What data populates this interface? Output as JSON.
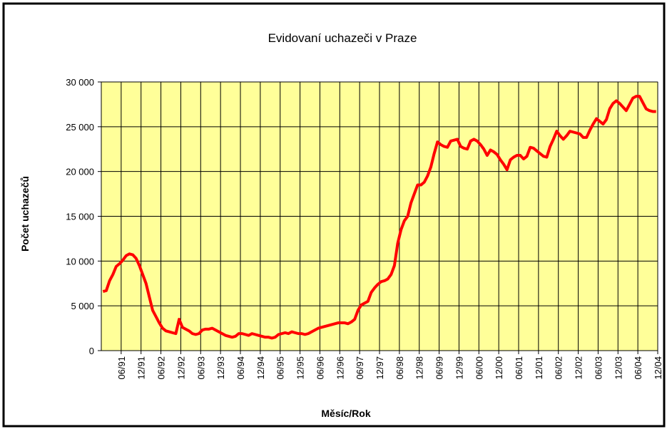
{
  "chart_data": {
    "type": "line",
    "title": "Evidovaní uchazeči v Praze",
    "y_label": "Počet uchazečů",
    "x_label": "Měsíc/Rok",
    "categories": [
      null,
      null,
      null,
      null,
      null,
      "06/91",
      null,
      null,
      null,
      null,
      null,
      "12/91",
      null,
      null,
      null,
      null,
      null,
      "06/92",
      null,
      null,
      null,
      null,
      null,
      "12/92",
      null,
      null,
      null,
      null,
      null,
      "06/93",
      null,
      null,
      null,
      null,
      null,
      "12/93",
      null,
      null,
      null,
      null,
      null,
      "06/94",
      null,
      null,
      null,
      null,
      null,
      "12/94",
      null,
      null,
      null,
      null,
      null,
      "06/95",
      null,
      null,
      null,
      null,
      null,
      "12/95",
      null,
      null,
      null,
      null,
      null,
      "06/96",
      null,
      null,
      null,
      null,
      null,
      "12/96",
      null,
      null,
      null,
      null,
      null,
      "06/97",
      null,
      null,
      null,
      null,
      null,
      "12/97",
      null,
      null,
      null,
      null,
      null,
      "06/98",
      null,
      null,
      null,
      null,
      null,
      "12/98",
      null,
      null,
      null,
      null,
      null,
      "06/99",
      null,
      null,
      null,
      null,
      null,
      "12/99",
      null,
      null,
      null,
      null,
      null,
      "06/00",
      null,
      null,
      null,
      null,
      null,
      "12/00",
      null,
      null,
      null,
      null,
      null,
      "06/01",
      null,
      null,
      null,
      null,
      null,
      "12/01",
      null,
      null,
      null,
      null,
      null,
      "06/02",
      null,
      null,
      null,
      null,
      null,
      "12/02",
      null,
      null,
      null,
      null,
      null,
      "06/03",
      null,
      null,
      null,
      null,
      null,
      "12/03",
      null,
      null,
      null,
      null,
      null,
      "06/04",
      null,
      null,
      null,
      null,
      null,
      "12/04"
    ],
    "series": [
      {
        "name": "Evidovaní uchazeči",
        "color": "#ff0000",
        "values": [
          6600,
          6700,
          7800,
          8500,
          9400,
          9700,
          10100,
          10600,
          10800,
          10700,
          10300,
          9500,
          8500,
          7500,
          6000,
          4500,
          3800,
          3100,
          2500,
          2200,
          2100,
          2000,
          1900,
          3500,
          2600,
          2400,
          2200,
          1900,
          1800,
          1900,
          2300,
          2400,
          2400,
          2500,
          2300,
          2100,
          1900,
          1700,
          1600,
          1500,
          1600,
          1900,
          1900,
          1800,
          1700,
          1900,
          1800,
          1700,
          1600,
          1500,
          1500,
          1400,
          1500,
          1800,
          1900,
          2000,
          1900,
          2100,
          2000,
          1900,
          1900,
          1800,
          1900,
          2100,
          2300,
          2500,
          2600,
          2700,
          2800,
          2900,
          3000,
          3100,
          3100,
          3100,
          3000,
          3200,
          3500,
          4500,
          5100,
          5300,
          5500,
          6500,
          7000,
          7400,
          7700,
          7800,
          8000,
          8500,
          9500,
          12000,
          13500,
          14500,
          15000,
          16500,
          17500,
          18500,
          18500,
          18800,
          19500,
          20500,
          22000,
          23300,
          23000,
          22800,
          22700,
          23400,
          23500,
          23600,
          22800,
          22600,
          22500,
          23400,
          23600,
          23400,
          23000,
          22500,
          21800,
          22400,
          22200,
          21900,
          21300,
          20800,
          20200,
          21300,
          21600,
          21800,
          21800,
          21400,
          21700,
          22700,
          22600,
          22300,
          22000,
          21700,
          21600,
          22800,
          23600,
          24500,
          24000,
          23600,
          24000,
          24500,
          24400,
          24300,
          24200,
          23800,
          23800,
          24600,
          25300,
          25900,
          25600,
          25300,
          25800,
          27000,
          27600,
          27900,
          27600,
          27200,
          26800,
          27500,
          28200,
          28400,
          28400,
          27700,
          27000,
          26800,
          26700,
          26700
        ]
      }
    ],
    "ylim": [
      0,
      30000
    ],
    "yticks": [
      0,
      {
        "value": 5000,
        "label": "5 000"
      },
      {
        "value": 10000,
        "label": "10 000"
      },
      {
        "value": 15000,
        "label": "15 000"
      },
      {
        "value": 20000,
        "label": "20 000"
      },
      {
        "value": 25000,
        "label": "25 000"
      },
      {
        "value": 30000,
        "label": "30 000"
      }
    ],
    "grid": true,
    "plot_color": "#ffff99"
  }
}
